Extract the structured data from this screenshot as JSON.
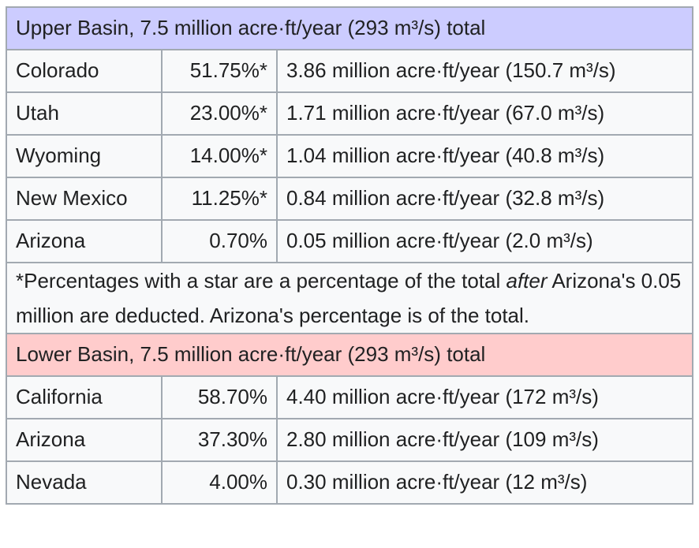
{
  "upper_basin": {
    "header": "Upper Basin, 7.5 million acre·ft/year (293 m³/s) total",
    "rows": [
      {
        "state": "Colorado",
        "pct": "51.75%*",
        "flow": "3.86 million acre·ft/year (150.7 m³/s)"
      },
      {
        "state": "Utah",
        "pct": "23.00%*",
        "flow": "1.71 million acre·ft/year (67.0 m³/s)"
      },
      {
        "state": "Wyoming",
        "pct": "14.00%*",
        "flow": "1.04 million acre·ft/year (40.8 m³/s)"
      },
      {
        "state": "New Mexico",
        "pct": "11.25%*",
        "flow": "0.84 million acre·ft/year (32.8 m³/s)"
      },
      {
        "state": "Arizona",
        "pct": "0.70%",
        "flow": "0.05 million acre·ft/year (2.0 m³/s)"
      }
    ]
  },
  "note": {
    "before": "*Percentages with a star are a percentage of the total ",
    "emphasis": "after",
    "after": " Arizona's 0.05 million are deducted. Arizona's percentage is of the total."
  },
  "lower_basin": {
    "header": "Lower Basin, 7.5 million acre·ft/year (293 m³/s) total",
    "rows": [
      {
        "state": "California",
        "pct": "58.70%",
        "flow": "4.40 million acre·ft/year (172 m³/s)"
      },
      {
        "state": "Arizona",
        "pct": "37.30%",
        "flow": "2.80 million acre·ft/year (109 m³/s)"
      },
      {
        "state": "Nevada",
        "pct": "4.00%",
        "flow": "0.30 million acre·ft/year (12 m³/s)"
      }
    ]
  },
  "colors": {
    "upper_header_bg": "#ccccff",
    "lower_header_bg": "#ffcccc",
    "cell_bg": "#f8f9fa",
    "border": "#a2a9b1",
    "text": "#202122"
  }
}
